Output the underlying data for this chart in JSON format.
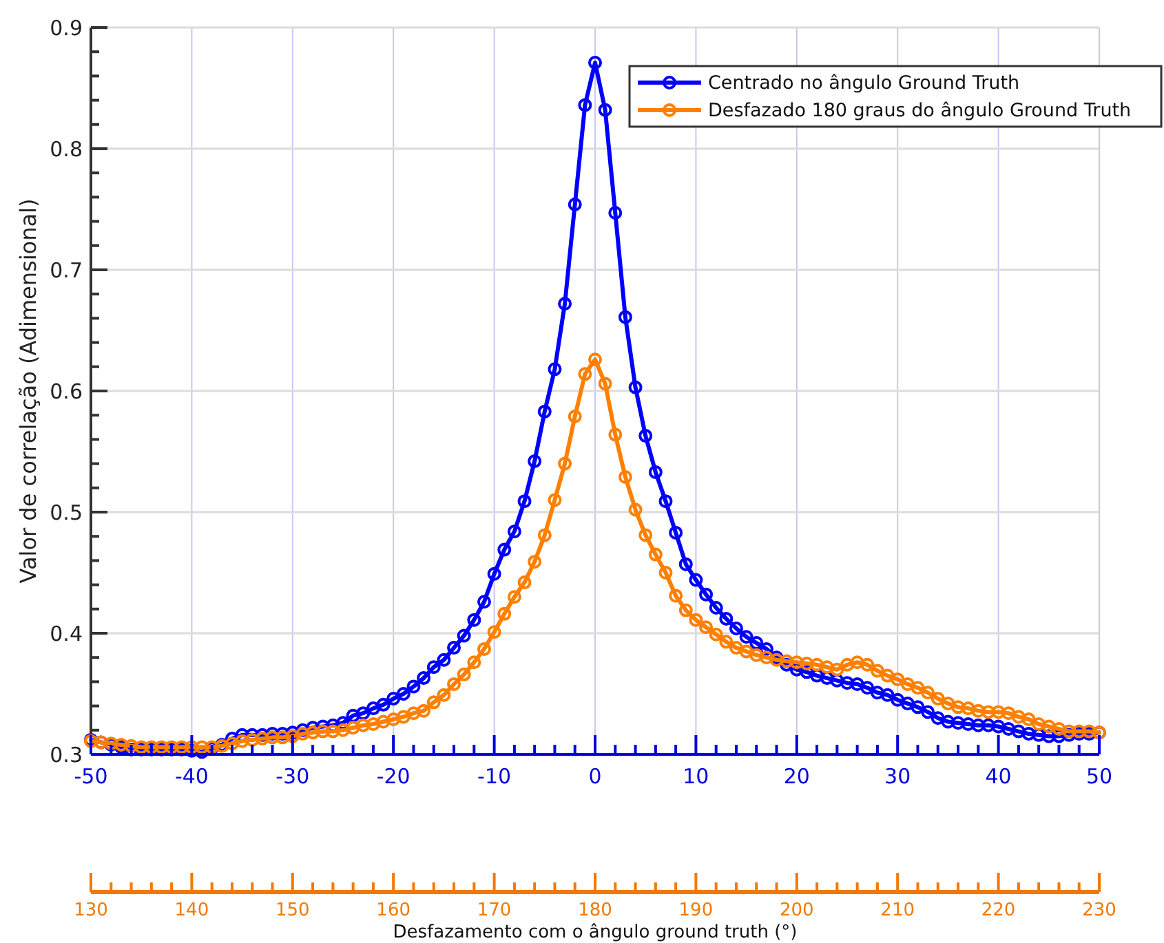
{
  "chart_data": {
    "type": "line",
    "ylabel": "Valor de correlação (Adimensional)",
    "xlabel": "Desfazamento com o ângulo ground truth (°)",
    "x": [
      -50,
      -49,
      -48,
      -47,
      -46,
      -45,
      -44,
      -43,
      -42,
      -41,
      -40,
      -39,
      -38,
      -37,
      -36,
      -35,
      -34,
      -33,
      -32,
      -31,
      -30,
      -29,
      -28,
      -27,
      -26,
      -25,
      -24,
      -23,
      -22,
      -21,
      -20,
      -19,
      -18,
      -17,
      -16,
      -15,
      -14,
      -13,
      -12,
      -11,
      -10,
      -9,
      -8,
      -7,
      -6,
      -5,
      -4,
      -3,
      -2,
      -1,
      0,
      1,
      2,
      3,
      4,
      5,
      6,
      7,
      8,
      9,
      10,
      11,
      12,
      13,
      14,
      15,
      16,
      17,
      18,
      19,
      20,
      21,
      22,
      23,
      24,
      25,
      26,
      27,
      28,
      29,
      30,
      31,
      32,
      33,
      34,
      35,
      36,
      37,
      38,
      39,
      40,
      41,
      42,
      43,
      44,
      45,
      46,
      47,
      48,
      49,
      50
    ],
    "series": [
      {
        "name": "Centrado no ângulo Ground Truth",
        "color": "#0000ff",
        "values": [
          0.312,
          0.31,
          0.308,
          0.306,
          0.304,
          0.304,
          0.304,
          0.304,
          0.304,
          0.304,
          0.303,
          0.302,
          0.305,
          0.308,
          0.313,
          0.316,
          0.316,
          0.316,
          0.317,
          0.317,
          0.318,
          0.32,
          0.322,
          0.323,
          0.324,
          0.326,
          0.332,
          0.334,
          0.338,
          0.341,
          0.346,
          0.35,
          0.356,
          0.363,
          0.372,
          0.378,
          0.388,
          0.398,
          0.411,
          0.426,
          0.449,
          0.469,
          0.484,
          0.509,
          0.542,
          0.583,
          0.618,
          0.672,
          0.754,
          0.836,
          0.871,
          0.832,
          0.747,
          0.661,
          0.603,
          0.563,
          0.533,
          0.509,
          0.483,
          0.457,
          0.444,
          0.432,
          0.421,
          0.412,
          0.404,
          0.397,
          0.392,
          0.387,
          0.38,
          0.374,
          0.37,
          0.368,
          0.365,
          0.363,
          0.361,
          0.359,
          0.358,
          0.355,
          0.351,
          0.349,
          0.345,
          0.342,
          0.339,
          0.335,
          0.33,
          0.327,
          0.326,
          0.325,
          0.324,
          0.324,
          0.323,
          0.321,
          0.319,
          0.317,
          0.316,
          0.315,
          0.315,
          0.316,
          0.317,
          0.317,
          0.318
        ]
      },
      {
        "name": "Desfazado 180 graus do ângulo Ground Truth",
        "color": "#ff8000",
        "values": [
          0.311,
          0.31,
          0.309,
          0.308,
          0.307,
          0.306,
          0.306,
          0.306,
          0.306,
          0.306,
          0.306,
          0.306,
          0.306,
          0.307,
          0.309,
          0.311,
          0.312,
          0.313,
          0.314,
          0.314,
          0.315,
          0.317,
          0.318,
          0.319,
          0.319,
          0.32,
          0.322,
          0.324,
          0.325,
          0.327,
          0.329,
          0.331,
          0.334,
          0.336,
          0.343,
          0.349,
          0.358,
          0.366,
          0.376,
          0.387,
          0.401,
          0.416,
          0.43,
          0.442,
          0.459,
          0.481,
          0.51,
          0.54,
          0.579,
          0.614,
          0.626,
          0.606,
          0.564,
          0.529,
          0.502,
          0.481,
          0.465,
          0.45,
          0.431,
          0.419,
          0.411,
          0.405,
          0.399,
          0.393,
          0.388,
          0.385,
          0.382,
          0.38,
          0.378,
          0.377,
          0.376,
          0.375,
          0.374,
          0.372,
          0.37,
          0.374,
          0.376,
          0.374,
          0.369,
          0.365,
          0.362,
          0.358,
          0.355,
          0.351,
          0.346,
          0.342,
          0.339,
          0.338,
          0.336,
          0.335,
          0.335,
          0.334,
          0.331,
          0.329,
          0.325,
          0.323,
          0.321,
          0.319,
          0.319,
          0.319,
          0.318
        ]
      }
    ],
    "xlim": [
      -50,
      50
    ],
    "xticks": [
      -50,
      {
        "value": -48,
        "label": null
      },
      {
        "value": -46,
        "label": null
      },
      {
        "value": -44,
        "label": null
      },
      {
        "value": -42,
        "label": null
      },
      -40,
      {
        "value": -38,
        "label": null
      },
      {
        "value": -36,
        "label": null
      },
      {
        "value": -34,
        "label": null
      },
      {
        "value": -32,
        "label": null
      },
      -30,
      {
        "value": -28,
        "label": null
      },
      {
        "value": -26,
        "label": null
      },
      {
        "value": -24,
        "label": null
      },
      {
        "value": -22,
        "label": null
      },
      -20,
      {
        "value": -18,
        "label": null
      },
      {
        "value": -16,
        "label": null
      },
      {
        "value": -14,
        "label": null
      },
      {
        "value": -12,
        "label": null
      },
      -10,
      {
        "value": -8,
        "label": null
      },
      {
        "value": -6,
        "label": null
      },
      {
        "value": -4,
        "label": null
      },
      {
        "value": -2,
        "label": null
      },
      0,
      {
        "value": 2,
        "label": null
      },
      {
        "value": 4,
        "label": null
      },
      {
        "value": 6,
        "label": null
      },
      {
        "value": 8,
        "label": null
      },
      10,
      {
        "value": 12,
        "label": null
      },
      {
        "value": 14,
        "label": null
      },
      {
        "value": 16,
        "label": null
      },
      {
        "value": 18,
        "label": null
      },
      20,
      {
        "value": 22,
        "label": null
      },
      {
        "value": 24,
        "label": null
      },
      {
        "value": 26,
        "label": null
      },
      {
        "value": 28,
        "label": null
      },
      30,
      {
        "value": 32,
        "label": null
      },
      {
        "value": 34,
        "label": null
      },
      {
        "value": 36,
        "label": null
      },
      {
        "value": 38,
        "label": null
      },
      40,
      {
        "value": 42,
        "label": null
      },
      {
        "value": 44,
        "label": null
      },
      {
        "value": 46,
        "label": null
      },
      {
        "value": 48,
        "label": null
      },
      50
    ],
    "x2lim": [
      130,
      230
    ],
    "x2ticks": [
      130,
      {
        "value": 132,
        "label": null
      },
      {
        "value": 134,
        "label": null
      },
      {
        "value": 136,
        "label": null
      },
      {
        "value": 138,
        "label": null
      },
      140,
      {
        "value": 142,
        "label": null
      },
      {
        "value": 144,
        "label": null
      },
      {
        "value": 146,
        "label": null
      },
      {
        "value": 148,
        "label": null
      },
      150,
      {
        "value": 152,
        "label": null
      },
      {
        "value": 154,
        "label": null
      },
      {
        "value": 156,
        "label": null
      },
      {
        "value": 158,
        "label": null
      },
      160,
      {
        "value": 162,
        "label": null
      },
      {
        "value": 164,
        "label": null
      },
      {
        "value": 166,
        "label": null
      },
      {
        "value": 168,
        "label": null
      },
      170,
      {
        "value": 172,
        "label": null
      },
      {
        "value": 174,
        "label": null
      },
      {
        "value": 176,
        "label": null
      },
      {
        "value": 178,
        "label": null
      },
      180,
      {
        "value": 182,
        "label": null
      },
      {
        "value": 184,
        "label": null
      },
      {
        "value": 186,
        "label": null
      },
      {
        "value": 188,
        "label": null
      },
      190,
      {
        "value": 192,
        "label": null
      },
      {
        "value": 194,
        "label": null
      },
      {
        "value": 196,
        "label": null
      },
      {
        "value": 198,
        "label": null
      },
      200,
      {
        "value": 202,
        "label": null
      },
      {
        "value": 204,
        "label": null
      },
      {
        "value": 206,
        "label": null
      },
      {
        "value": 208,
        "label": null
      },
      210,
      {
        "value": 212,
        "label": null
      },
      {
        "value": 214,
        "label": null
      },
      {
        "value": 216,
        "label": null
      },
      {
        "value": 218,
        "label": null
      },
      220,
      {
        "value": 222,
        "label": null
      },
      {
        "value": 224,
        "label": null
      },
      {
        "value": 226,
        "label": null
      },
      {
        "value": 228,
        "label": null
      },
      230
    ],
    "ylim": [
      0.3,
      0.9
    ],
    "yticks": [
      0.3,
      {
        "value": 0.32,
        "label": null
      },
      {
        "value": 0.34,
        "label": null
      },
      {
        "value": 0.36,
        "label": null
      },
      {
        "value": 0.38,
        "label": null
      },
      0.4,
      {
        "value": 0.42,
        "label": null
      },
      {
        "value": 0.44,
        "label": null
      },
      {
        "value": 0.46,
        "label": null
      },
      {
        "value": 0.48,
        "label": null
      },
      0.5,
      {
        "value": 0.52,
        "label": null
      },
      {
        "value": 0.54,
        "label": null
      },
      {
        "value": 0.56,
        "label": null
      },
      {
        "value": 0.58,
        "label": null
      },
      0.6,
      {
        "value": 0.62,
        "label": null
      },
      {
        "value": 0.64,
        "label": null
      },
      {
        "value": 0.66,
        "label": null
      },
      {
        "value": 0.68,
        "label": null
      },
      0.7,
      {
        "value": 0.72,
        "label": null
      },
      {
        "value": 0.74,
        "label": null
      },
      {
        "value": 0.76,
        "label": null
      },
      {
        "value": 0.78,
        "label": null
      },
      0.8,
      {
        "value": 0.82,
        "label": null
      },
      {
        "value": 0.84,
        "label": null
      },
      {
        "value": 0.86,
        "label": null
      },
      {
        "value": 0.88,
        "label": null
      },
      0.9
    ],
    "grid": true,
    "legend": "top right",
    "marker": "circle",
    "line_style": "solid"
  }
}
